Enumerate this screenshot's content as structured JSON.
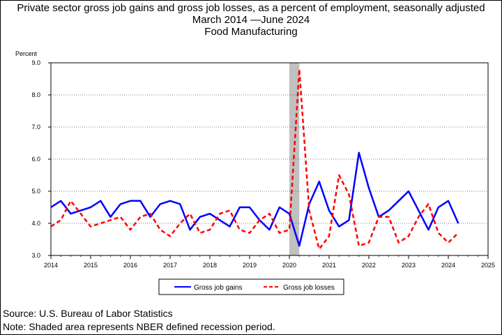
{
  "titles": {
    "line1": "Private sector gross job gains and gross job losses, as a percent of employment, seasonally adjusted",
    "line2": "March 2014 —June 2024",
    "line3": "Food Manufacturing"
  },
  "footer": {
    "source": "Source: U.S. Bureau of Labor Statistics",
    "note": "Note: Shaded area represents NBER defined recession period."
  },
  "chart_data": {
    "type": "line",
    "title": "Private sector gross job gains and gross job losses, as a percent of employment, seasonally adjusted",
    "subtitle": "March 2014 —June 2024 — Food Manufacturing",
    "ylabel": "Percent",
    "xlabel": "",
    "xlim": [
      2014,
      2025
    ],
    "ylim": [
      3.0,
      9.0
    ],
    "x_ticks": [
      "2014",
      "2015",
      "2016",
      "2017",
      "2018",
      "2019",
      "2020",
      "2021",
      "2022",
      "2023",
      "2024",
      "2025"
    ],
    "y_ticks": [
      "3.0",
      "4.0",
      "5.0",
      "6.0",
      "7.0",
      "8.0",
      "9.0"
    ],
    "grid": true,
    "legend_position": "bottom",
    "recession_shading": {
      "start": "2020-Q1",
      "end": "2020-Q2",
      "color": "#c0c0c0"
    },
    "x": [
      "2014-Q1",
      "2014-Q2",
      "2014-Q3",
      "2014-Q4",
      "2015-Q1",
      "2015-Q2",
      "2015-Q3",
      "2015-Q4",
      "2016-Q1",
      "2016-Q2",
      "2016-Q3",
      "2016-Q4",
      "2017-Q1",
      "2017-Q2",
      "2017-Q3",
      "2017-Q4",
      "2018-Q1",
      "2018-Q2",
      "2018-Q3",
      "2018-Q4",
      "2019-Q1",
      "2019-Q2",
      "2019-Q3",
      "2019-Q4",
      "2020-Q1",
      "2020-Q2",
      "2020-Q3",
      "2020-Q4",
      "2021-Q1",
      "2021-Q2",
      "2021-Q3",
      "2021-Q4",
      "2022-Q1",
      "2022-Q2",
      "2022-Q3",
      "2022-Q4",
      "2023-Q1",
      "2023-Q2",
      "2023-Q3",
      "2023-Q4",
      "2024-Q1",
      "2024-Q2"
    ],
    "series": [
      {
        "name": "Gross job gains",
        "color": "#0000ff",
        "dash": "solid",
        "values": [
          4.5,
          4.7,
          4.3,
          4.4,
          4.5,
          4.7,
          4.2,
          4.6,
          4.7,
          4.7,
          4.2,
          4.6,
          4.7,
          4.6,
          3.8,
          4.2,
          4.3,
          4.1,
          3.9,
          4.5,
          4.5,
          4.1,
          3.8,
          4.5,
          4.3,
          3.3,
          4.6,
          5.3,
          4.4,
          3.9,
          4.1,
          6.2,
          5.1,
          4.2,
          4.4,
          4.7,
          5.0,
          4.4,
          3.8,
          4.5,
          4.7,
          4.0
        ]
      },
      {
        "name": "Gross job losses",
        "color": "#ff0000",
        "dash": "dashed",
        "values": [
          3.9,
          4.1,
          4.7,
          4.3,
          3.9,
          4.0,
          4.1,
          4.2,
          3.8,
          4.2,
          4.3,
          3.8,
          3.6,
          4.0,
          4.3,
          3.7,
          3.8,
          4.3,
          4.4,
          3.8,
          3.7,
          4.1,
          4.3,
          3.7,
          3.8,
          8.8,
          4.4,
          3.2,
          3.6,
          5.5,
          4.9,
          3.3,
          3.4,
          4.2,
          4.2,
          3.4,
          3.6,
          4.2,
          4.6,
          3.7,
          3.4,
          3.7
        ]
      }
    ]
  }
}
